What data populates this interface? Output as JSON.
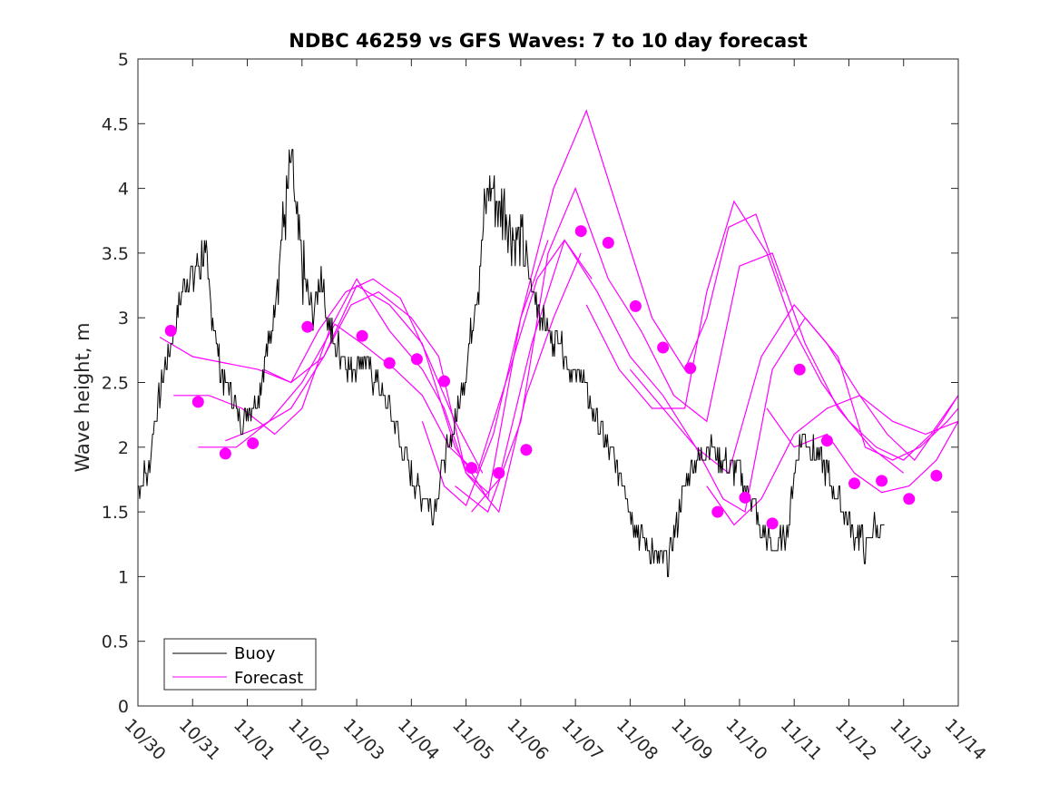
{
  "chart_data": {
    "type": "line",
    "title": "NDBC 46259 vs GFS Waves: 7 to 10 day forecast",
    "xlabel": "",
    "ylabel": "Wave height, m",
    "xlim": [
      0,
      15
    ],
    "ylim": [
      0,
      5
    ],
    "x_tick_values": [
      0,
      1,
      2,
      3,
      4,
      5,
      6,
      7,
      8,
      9,
      10,
      11,
      12,
      13,
      14,
      15
    ],
    "x_tick_labels": [
      "10/30",
      "10/31",
      "11/01",
      "11/02",
      "11/03",
      "11/04",
      "11/05",
      "11/06",
      "11/07",
      "11/08",
      "11/09",
      "11/10",
      "11/11",
      "11/12",
      "11/13",
      "11/14"
    ],
    "y_ticks": [
      0,
      0.5,
      1,
      1.5,
      2,
      2.5,
      3,
      3.5,
      4,
      4.5,
      5
    ],
    "y_tick_labels": [
      "0",
      "0.5",
      "1",
      "1.5",
      "2",
      "2.5",
      "3",
      "3.5",
      "4",
      "4.5",
      "5"
    ],
    "grid": false,
    "legend": {
      "position": "bottom-left",
      "entries": [
        "Buoy",
        "Forecast"
      ]
    },
    "colors": {
      "buoy": "#000000",
      "forecast": "#ff00ff",
      "axis": "#262626"
    },
    "series": [
      {
        "name": "Buoy",
        "color": "#000000",
        "x": [
          0,
          0.2,
          0.3,
          0.45,
          0.55,
          0.7,
          0.8,
          0.9,
          1.0,
          1.1,
          1.2,
          1.3,
          1.4,
          1.5,
          1.6,
          1.7,
          1.8,
          1.9,
          2.0,
          2.1,
          2.2,
          2.3,
          2.45,
          2.6,
          2.7,
          2.8,
          2.9,
          3.0,
          3.1,
          3.2,
          3.25,
          3.3,
          3.35,
          3.45,
          3.6,
          3.75,
          3.9,
          4.0,
          4.1,
          4.2,
          4.3,
          4.4,
          4.5,
          4.6,
          4.7,
          4.8,
          4.9,
          5.0,
          5.1,
          5.2,
          5.3,
          5.4,
          5.5,
          5.6,
          5.7,
          5.8,
          5.9,
          6.0,
          6.1,
          6.2,
          6.3,
          6.4,
          6.5,
          6.6,
          6.7,
          6.8,
          6.9,
          7.0,
          7.05,
          7.1,
          7.2,
          7.3,
          7.4,
          7.5,
          7.6,
          7.7,
          7.8,
          7.9,
          8.0,
          8.1,
          8.2,
          8.3,
          8.4,
          8.5,
          8.6,
          8.7,
          8.8,
          8.9,
          9.0,
          9.1,
          9.2,
          9.3,
          9.4,
          9.5,
          9.6,
          9.7,
          9.8,
          9.9,
          10.0,
          10.1,
          10.2,
          10.3,
          10.4,
          10.5,
          10.6,
          10.7,
          10.8,
          10.9,
          11.0,
          11.1,
          11.2,
          11.3,
          11.4,
          11.5,
          11.6,
          11.7,
          11.8,
          11.9,
          12.0,
          12.1,
          12.2,
          12.3,
          12.4,
          12.5,
          12.6,
          12.7,
          12.8,
          12.9,
          13.0,
          13.1,
          13.2,
          13.3,
          13.4,
          13.5,
          13.6,
          13.65
        ],
        "y": [
          1.7,
          1.8,
          2.2,
          2.5,
          2.7,
          3.0,
          3.2,
          3.3,
          3.3,
          3.4,
          3.5,
          3.2,
          2.9,
          2.6,
          2.5,
          2.4,
          2.3,
          2.2,
          2.3,
          2.3,
          2.4,
          2.6,
          2.9,
          3.5,
          3.8,
          4.2,
          3.7,
          3.4,
          3.2,
          3.0,
          3.1,
          3.2,
          3.4,
          3.0,
          2.8,
          2.7,
          2.6,
          2.6,
          2.7,
          2.6,
          2.5,
          2.5,
          2.4,
          2.3,
          2.2,
          2.0,
          1.9,
          1.8,
          1.7,
          1.6,
          1.6,
          1.5,
          1.7,
          1.9,
          2.0,
          2.2,
          2.4,
          2.6,
          2.9,
          3.2,
          3.6,
          4.0,
          4.0,
          3.8,
          3.9,
          3.7,
          3.6,
          3.6,
          3.5,
          3.4,
          3.2,
          3.1,
          3.0,
          2.9,
          2.8,
          2.9,
          2.7,
          2.6,
          2.5,
          2.6,
          2.4,
          2.3,
          2.2,
          2.1,
          2.0,
          1.9,
          1.8,
          1.7,
          1.5,
          1.4,
          1.3,
          1.2,
          1.2,
          1.1,
          1.1,
          1.15,
          1.3,
          1.5,
          1.7,
          1.8,
          1.9,
          1.9,
          2.0,
          2.0,
          1.9,
          1.9,
          1.8,
          1.8,
          1.8,
          1.7,
          1.6,
          1.5,
          1.3,
          1.3,
          1.2,
          1.2,
          1.3,
          1.4,
          1.8,
          2.0,
          2.1,
          2.0,
          1.9,
          1.9,
          1.8,
          1.7,
          1.6,
          1.5,
          1.4,
          1.3,
          1.3,
          1.2,
          1.3,
          1.4,
          1.35,
          1.4
        ]
      },
      {
        "name": "Forecast",
        "color": "#ff00ff",
        "lines": [
          {
            "x": [
              0.4,
              1.0,
              1.6,
              2.2,
              2.8,
              3.3,
              3.8,
              4.3,
              4.8,
              5.3,
              5.8,
              6.3
            ],
            "y": [
              2.85,
              2.7,
              2.65,
              2.6,
              2.5,
              2.9,
              3.2,
              3.3,
              3.15,
              2.7,
              2.2,
              1.8
            ]
          },
          {
            "x": [
              0.65,
              1.3,
              1.9,
              2.5,
              3.0,
              3.5,
              4.0,
              4.6,
              5.2,
              5.6,
              6.0,
              6.4
            ],
            "y": [
              2.4,
              2.4,
              2.3,
              2.1,
              2.3,
              2.9,
              3.3,
              2.9,
              2.6,
              2.3,
              1.8,
              1.65
            ]
          },
          {
            "x": [
              1.1,
              1.8,
              2.4,
              3.0,
              3.6,
              4.1,
              4.7,
              5.2,
              5.7,
              6.2,
              6.8,
              7.3,
              7.8,
              8.3
            ],
            "y": [
              2.0,
              2.0,
              2.2,
              2.5,
              2.95,
              2.8,
              2.6,
              2.4,
              2.0,
              1.8,
              2.6,
              3.3,
              3.6,
              3.3
            ]
          },
          {
            "x": [
              1.6,
              2.2,
              2.8,
              3.4,
              4.0,
              4.6,
              5.2,
              5.8,
              6.4,
              7.0,
              7.5
            ],
            "y": [
              2.05,
              2.15,
              2.3,
              2.7,
              3.25,
              3.1,
              2.8,
              2.0,
              1.6,
              3.0,
              3.6
            ]
          },
          {
            "x": [
              2.3,
              2.8,
              3.4,
              3.9,
              4.4,
              5.0,
              5.5,
              6.0,
              6.6,
              7.1,
              7.6,
              8.1
            ],
            "y": [
              2.6,
              2.5,
              2.7,
              3.1,
              3.2,
              3.0,
              2.7,
              1.8,
              1.5,
              2.4,
              3.0,
              3.5
            ]
          },
          {
            "x": [
              5.2,
              5.6,
              6.0,
              6.5,
              7.0,
              7.6,
              8.2,
              8.8,
              9.4,
              10.0,
              10.4,
              10.8,
              11.3,
              11.8
            ],
            "y": [
              2.2,
              1.7,
              1.55,
              2.1,
              3.0,
              4.0,
              4.6,
              3.8,
              3.0,
              2.6,
              3.0,
              3.7,
              3.8,
              3.2
            ]
          },
          {
            "x": [
              5.8,
              6.4,
              7.0,
              7.5,
              8.0,
              8.6,
              9.2,
              9.8,
              10.4,
              11.0,
              11.6,
              12.2,
              12.8,
              13.4,
              14.0
            ],
            "y": [
              1.7,
              1.5,
              2.2,
              3.5,
              4.0,
              3.3,
              2.9,
              2.4,
              2.2,
              3.4,
              3.5,
              2.8,
              2.3,
              2.0,
              1.8
            ]
          },
          {
            "x": [
              6.1,
              6.6,
              7.2,
              7.8,
              8.4,
              9.0,
              9.6,
              10.2,
              10.8,
              11.4,
              12.0,
              12.6,
              13.2,
              13.8,
              14.4,
              15.0
            ],
            "y": [
              1.5,
              1.75,
              2.8,
              3.6,
              3.2,
              2.7,
              2.4,
              2.0,
              1.8,
              2.7,
              3.1,
              2.8,
              2.4,
              2.2,
              2.1,
              2.2
            ]
          },
          {
            "x": [
              8.2,
              8.8,
              9.4,
              10.0,
              10.4,
              10.9,
              11.5,
              12.0,
              12.5,
              13.0,
              13.5,
              14.0,
              14.5,
              15.0
            ],
            "y": [
              3.1,
              2.6,
              2.3,
              2.3,
              3.2,
              3.9,
              3.5,
              2.9,
              2.5,
              2.2,
              2.0,
              1.9,
              2.1,
              2.4
            ]
          },
          {
            "x": [
              9.0,
              9.6,
              10.2,
              10.7,
              11.1,
              11.6,
              12.2,
              12.8,
              13.3,
              13.8,
              14.3,
              14.8,
              15.0
            ],
            "y": [
              2.6,
              2.3,
              2.0,
              1.6,
              1.5,
              2.6,
              3.0,
              2.7,
              2.0,
              1.9,
              2.0,
              2.2,
              2.3
            ]
          },
          {
            "x": [
              10.4,
              10.9,
              11.4,
              12.0,
              12.6,
              13.2,
              13.7,
              14.2,
              14.7,
              15.0
            ],
            "y": [
              1.7,
              1.4,
              1.6,
              2.1,
              2.3,
              2.4,
              2.1,
              1.9,
              2.2,
              2.4
            ]
          },
          {
            "x": [
              11.5,
              12.0,
              12.6,
              13.1,
              13.6,
              14.1,
              14.6,
              15.0
            ],
            "y": [
              2.3,
              2.0,
              2.1,
              1.8,
              1.65,
              1.7,
              1.9,
              2.2
            ]
          }
        ]
      }
    ],
    "forecast_markers": {
      "x": [
        0.6,
        1.1,
        1.6,
        2.1,
        3.1,
        4.1,
        4.6,
        5.1,
        5.6,
        6.1,
        6.6,
        7.1,
        8.1,
        8.6,
        9.1,
        9.6,
        10.1,
        10.6,
        11.1,
        11.6,
        12.1,
        12.6,
        13.1,
        13.6,
        14.1,
        14.6
      ],
      "y": [
        2.9,
        2.35,
        1.95,
        2.03,
        2.93,
        2.86,
        2.65,
        2.68,
        2.51,
        1.84,
        1.8,
        1.98,
        3.67,
        3.58,
        3.09,
        2.77,
        2.61,
        1.5,
        1.61,
        1.41,
        2.6,
        2.05,
        1.72,
        1.74,
        1.6,
        1.78
      ]
    }
  }
}
